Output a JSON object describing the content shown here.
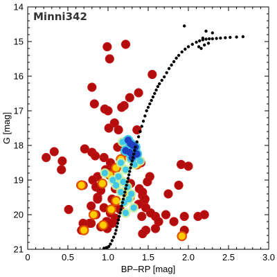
{
  "chart_data": {
    "type": "scatter",
    "title": "Minni342",
    "xlabel": "BP–RP [mag]",
    "ylabel": "G [mag]",
    "xlim": [
      0,
      3.0
    ],
    "ylim": [
      21,
      14
    ],
    "y_inverted": true,
    "grid": false,
    "x_ticks": [
      "0",
      "0.5",
      "1.0",
      "1.5",
      "2.0",
      "2.5",
      "3.0"
    ],
    "x_tick_values": [
      0,
      0.5,
      1.0,
      1.5,
      2.0,
      2.5,
      3.0
    ],
    "y_ticks": [
      "14",
      "15",
      "16",
      "17",
      "18",
      "19",
      "20",
      "21"
    ],
    "y_tick_values": [
      14,
      15,
      16,
      17,
      18,
      19,
      20,
      21
    ],
    "colors": {
      "member_fill": "#b30d0d",
      "member_edge": "#e05000",
      "member_highlight": "#ffcc00",
      "density_high": "#1f3fbf",
      "density_mid": "#41c8e8",
      "density_low": "#c8f0a0",
      "isochrone": "#000000"
    },
    "series": [
      {
        "role": "red-member-stars",
        "marker": "circle",
        "x": [
          0.99,
          1.22,
          1.02,
          1.55,
          0.8,
          1.38,
          1.27,
          0.83,
          0.96,
          1.0,
          1.2,
          1.17,
          1.08,
          1.36,
          1.01,
          1.13,
          0.23,
          0.33,
          0.43,
          0.42,
          0.71,
          0.8,
          0.84,
          0.95,
          1.03,
          1.07,
          1.41,
          0.97,
          0.87,
          0.81,
          0.69,
          0.66,
          0.85,
          0.91,
          0.87,
          1.05,
          1.09,
          1.15,
          1.03,
          0.85,
          1.09,
          0.99,
          0.77,
          0.79,
          0.51,
          0.79,
          0.87,
          0.95,
          0.99,
          0.69,
          0.67,
          0.91,
          0.98,
          1.05,
          1.39,
          1.43,
          1.45,
          1.47,
          1.59,
          1.72,
          1.63,
          1.59,
          1.47,
          1.43,
          1.42,
          1.75,
          1.88,
          1.95,
          1.82,
          1.95,
          2.12,
          2.2,
          2.0,
          1.52,
          1.49,
          1.43,
          1.46,
          1.38,
          1.53,
          1.91,
          1.12,
          1.08,
          1.28,
          1.09
        ],
        "y": [
          15.15,
          15.08,
          15.5,
          15.95,
          16.32,
          16.48,
          16.62,
          16.8,
          16.95,
          17.0,
          16.85,
          16.9,
          17.35,
          17.55,
          17.5,
          17.55,
          18.35,
          18.18,
          18.45,
          18.7,
          18.1,
          18.2,
          18.3,
          18.35,
          18.5,
          18.65,
          18.5,
          18.7,
          18.9,
          19.0,
          19.15,
          19.15,
          19.2,
          19.3,
          19.5,
          19.55,
          19.65,
          19.85,
          19.95,
          20.0,
          20.1,
          20.2,
          20.25,
          20.25,
          19.85,
          19.75,
          19.55,
          19.8,
          20.4,
          20.25,
          20.45,
          20.35,
          20.2,
          20.25,
          19.25,
          19.45,
          19.6,
          19.8,
          20.05,
          20.0,
          20.2,
          20.4,
          20.45,
          20.55,
          20.05,
          19.4,
          19.15,
          20.05,
          20.2,
          20.45,
          20.05,
          20.0,
          18.6,
          18.9,
          19.05,
          19.35,
          19.55,
          19.7,
          19.95,
          18.55,
          18.05,
          18.95,
          19.1,
          19.25
        ],
        "note_sizes": "uniform"
      },
      {
        "role": "yellow-highlight-stars",
        "marker": "circle",
        "x": [
          0.67,
          0.7,
          0.82,
          0.93,
          1.02,
          1.1,
          1.16,
          1.22,
          1.29,
          1.36,
          1.21,
          1.1,
          1.04,
          0.94,
          1.92,
          1.27
        ],
        "y": [
          19.15,
          20.45,
          20.0,
          19.1,
          18.85,
          18.65,
          18.4,
          18.2,
          18.3,
          18.55,
          19.35,
          19.6,
          19.85,
          20.3,
          20.62,
          19.5
        ]
      },
      {
        "role": "density-blue-core",
        "marker": "blob",
        "x": [
          1.25,
          1.28,
          1.31,
          1.34,
          1.22,
          1.27,
          1.36,
          1.3
        ],
        "y": [
          17.85,
          17.95,
          18.0,
          18.05,
          18.15,
          18.2,
          18.25,
          18.35
        ]
      },
      {
        "role": "density-cyan",
        "marker": "blob",
        "x": [
          1.18,
          1.23,
          1.28,
          1.33,
          1.4,
          1.16,
          1.22,
          1.13,
          1.19,
          1.24,
          1.29,
          1.26,
          1.1,
          1.16,
          1.2,
          0.96,
          1.06,
          1.32,
          1.22
        ],
        "y": [
          17.9,
          18.1,
          18.4,
          18.55,
          18.45,
          18.5,
          18.7,
          18.9,
          19.05,
          19.2,
          19.4,
          19.55,
          19.15,
          19.35,
          19.65,
          18.8,
          19.0,
          19.8,
          19.95
        ]
      },
      {
        "role": "isochrone",
        "marker": "small-dot",
        "x": [
          0.95,
          0.98,
          1.01,
          1.03,
          1.05,
          1.07,
          1.09,
          1.1,
          1.11,
          1.12,
          1.13,
          1.14,
          1.15,
          1.16,
          1.17,
          1.18,
          1.19,
          1.2,
          1.21,
          1.22,
          1.23,
          1.24,
          1.25,
          1.26,
          1.27,
          1.28,
          1.29,
          1.3,
          1.31,
          1.32,
          1.33,
          1.34,
          1.36,
          1.38,
          1.4,
          1.42,
          1.44,
          1.46,
          1.48,
          1.5,
          1.52,
          1.54,
          1.56,
          1.58,
          1.6,
          1.62,
          1.64,
          1.67,
          1.7,
          1.73,
          1.76,
          1.79,
          1.82,
          1.85,
          1.88,
          1.92,
          1.96,
          2.0,
          2.05,
          2.1,
          2.14,
          2.18,
          2.22,
          2.26,
          2.3,
          2.35,
          2.4,
          2.46,
          2.52,
          2.6,
          2.68,
          2.25,
          2.22,
          2.3,
          2.18,
          1.95,
          2.2,
          2.13,
          2.16
        ],
        "y": [
          20.97,
          20.95,
          20.92,
          20.85,
          20.75,
          20.65,
          20.55,
          20.45,
          20.35,
          20.25,
          20.15,
          20.05,
          19.95,
          19.85,
          19.75,
          19.65,
          19.55,
          19.45,
          19.35,
          19.25,
          19.15,
          19.05,
          18.95,
          18.85,
          18.75,
          18.65,
          18.55,
          18.45,
          18.35,
          18.25,
          18.15,
          18.05,
          17.9,
          17.75,
          17.6,
          17.45,
          17.3,
          17.15,
          17.0,
          16.9,
          16.8,
          16.7,
          16.6,
          16.5,
          16.4,
          16.3,
          16.22,
          16.12,
          16.02,
          15.9,
          15.78,
          15.68,
          15.58,
          15.48,
          15.4,
          15.3,
          15.22,
          15.15,
          15.08,
          15.02,
          14.98,
          14.95,
          14.93,
          14.92,
          14.92,
          14.91,
          14.9,
          14.89,
          14.88,
          14.87,
          14.86,
          15.05,
          14.7,
          14.75,
          14.9,
          14.55,
          15.1,
          15.15,
          15.2
        ]
      }
    ]
  }
}
